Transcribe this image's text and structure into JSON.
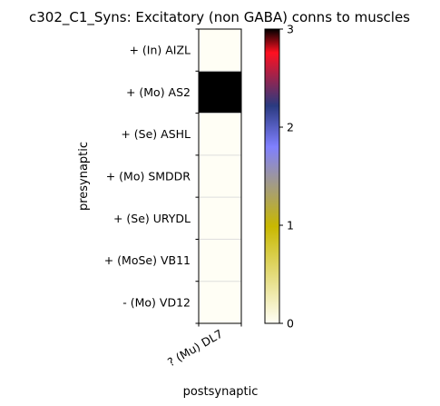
{
  "chart_data": {
    "type": "heatmap",
    "title": "c302_C1_Syns: Excitatory (non GABA) conns to muscles",
    "xlabel": "postsynaptic",
    "ylabel": "presynaptic",
    "x_categories": [
      "? (Mu) DL7"
    ],
    "y_categories": [
      "+ (In) AIZL",
      "+ (Mo) AS2",
      "+ (Se) ASHL",
      "+ (Mo) SMDDR",
      "+ (Se) URYDL",
      "+ (MoSe) VB11",
      "- (Mo) VD12"
    ],
    "values": [
      [
        0
      ],
      [
        3
      ],
      [
        0
      ],
      [
        0
      ],
      [
        0
      ],
      [
        0
      ],
      [
        0
      ]
    ],
    "colorbar": {
      "min": 0,
      "max": 3,
      "ticks": [
        0,
        1,
        2,
        3
      ],
      "tick_labels": [
        "0",
        "1",
        "2",
        "3"
      ],
      "colors": [
        "#fffef5",
        "#c8b800",
        "#8080ff",
        "#2a3a80",
        "#ff1020",
        "#000000"
      ]
    }
  }
}
